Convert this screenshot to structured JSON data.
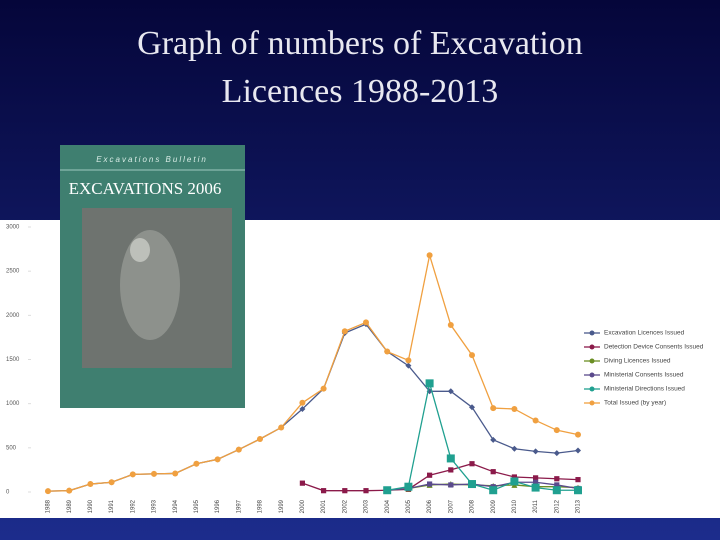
{
  "chart_data": {
    "type": "line",
    "title": "Graph of numbers of Excavation\nLicences 1988-2013",
    "categories": [
      "1988",
      "1989",
      "1990",
      "1991",
      "1992",
      "1993",
      "1994",
      "1995",
      "1996",
      "1997",
      "1998",
      "1999",
      "2000",
      "2001",
      "2002",
      "2003",
      "2004",
      "2005",
      "2006",
      "2007",
      "2008",
      "2009",
      "2010",
      "2011",
      "2012",
      "2013"
    ],
    "ylim": [
      0,
      3000
    ],
    "yticks": [
      0,
      500,
      1000,
      1500,
      2000,
      2500,
      3000
    ],
    "series": [
      {
        "name": "Excavation Licences Issued",
        "color": "#4a5a8c",
        "marker": "diamond",
        "values": [
          10,
          15,
          90,
          110,
          200,
          205,
          210,
          320,
          370,
          480,
          600,
          730,
          940,
          1170,
          1800,
          1900,
          1590,
          1430,
          1140,
          1140,
          960,
          590,
          490,
          460,
          440,
          470
        ]
      },
      {
        "name": "Detection Device Consents Issued",
        "color": "#8b1a4a",
        "marker": "square",
        "values": [
          null,
          null,
          null,
          null,
          null,
          null,
          null,
          null,
          null,
          null,
          null,
          null,
          100,
          15,
          15,
          15,
          20,
          30,
          190,
          250,
          320,
          230,
          170,
          160,
          150,
          140
        ]
      },
      {
        "name": "Diving Licences Issued",
        "color": "#6b8e23",
        "marker": "triangle",
        "values": [
          null,
          null,
          null,
          null,
          null,
          null,
          null,
          null,
          null,
          null,
          null,
          null,
          null,
          null,
          null,
          null,
          20,
          40,
          80,
          90,
          80,
          70,
          80,
          60,
          60,
          50
        ]
      },
      {
        "name": "Ministerial Consents Issued",
        "color": "#5a4a8c",
        "marker": "square",
        "values": [
          null,
          null,
          null,
          null,
          null,
          null,
          null,
          null,
          null,
          null,
          null,
          null,
          null,
          null,
          null,
          null,
          20,
          40,
          90,
          80,
          90,
          60,
          110,
          110,
          80,
          40
        ]
      },
      {
        "name": "Ministerial Directions Issued",
        "color": "#20a090",
        "marker": "square",
        "values": [
          null,
          null,
          null,
          null,
          null,
          null,
          null,
          null,
          null,
          null,
          null,
          null,
          null,
          null,
          null,
          null,
          20,
          60,
          1230,
          380,
          90,
          20,
          120,
          50,
          20,
          20
        ]
      },
      {
        "name": "Total Issued (by year)",
        "color": "#f0a040",
        "marker": "circle",
        "values": [
          10,
          15,
          90,
          110,
          200,
          205,
          210,
          320,
          370,
          480,
          600,
          730,
          1010,
          1170,
          1820,
          1920,
          1590,
          1490,
          2680,
          1890,
          1550,
          950,
          940,
          810,
          700,
          650
        ]
      }
    ]
  },
  "cover": {
    "series_title": "Excavations Bulletin",
    "title": "EXCAVATIONS 2006"
  }
}
